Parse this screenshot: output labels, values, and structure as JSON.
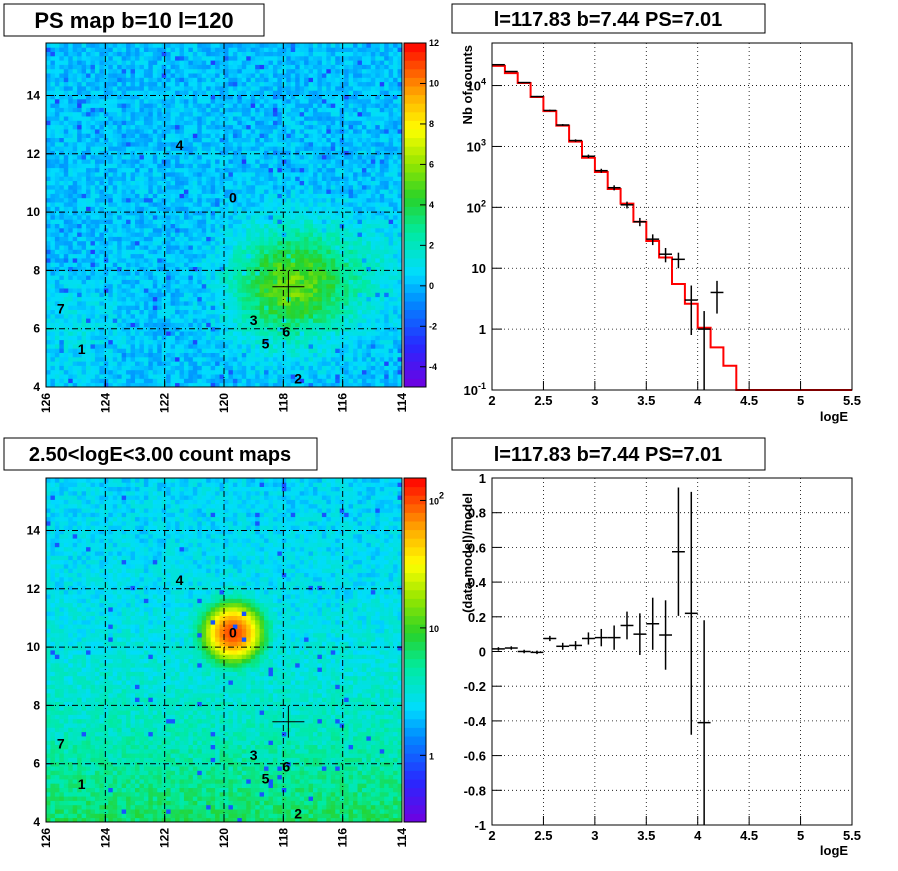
{
  "panels": {
    "tl_title": "PS map b=10 l=120",
    "tr_title": "l=117.83 b=7.44 PS=7.01",
    "bl_title": "2.50<logE<3.00 count maps",
    "br_title": "l=117.83 b=7.44 PS=7.01"
  },
  "source_labels": [
    "0",
    "1",
    "2",
    "3",
    "4",
    "5",
    "6",
    "7"
  ],
  "chart_data": [
    {
      "id": "ps-map",
      "type": "heatmap",
      "title": "PS map b=10 l=120",
      "xlim": [
        126,
        114
      ],
      "ylim": [
        4,
        15.8
      ],
      "x_ticks": [
        "126",
        "124",
        "122",
        "120",
        "118",
        "116",
        "114"
      ],
      "y_ticks": [
        "4",
        "6",
        "8",
        "10",
        "12",
        "14"
      ],
      "grid": true,
      "colorbar": {
        "min": -5,
        "max": 12,
        "ticks": [
          "12",
          "10",
          "8",
          "6",
          "4",
          "2",
          "0",
          "-2",
          "-4"
        ]
      },
      "marker": {
        "l": 117.83,
        "b": 7.44
      },
      "peak": {
        "l": 117.8,
        "b": 7.5,
        "value": 5
      },
      "sources": [
        {
          "label": "0",
          "l": 119.7,
          "b": 10.5
        },
        {
          "label": "1",
          "l": 124.8,
          "b": 5.3
        },
        {
          "label": "2",
          "l": 117.5,
          "b": 4.3
        },
        {
          "label": "3",
          "l": 119.0,
          "b": 6.3
        },
        {
          "label": "4",
          "l": 121.5,
          "b": 12.3
        },
        {
          "label": "5",
          "l": 118.6,
          "b": 5.5
        },
        {
          "label": "6",
          "l": 117.9,
          "b": 5.9
        },
        {
          "label": "7",
          "l": 125.5,
          "b": 6.7
        }
      ]
    },
    {
      "id": "spectrum",
      "type": "line",
      "title": "l=117.83 b=7.44 PS=7.01",
      "xlabel": "logE",
      "ylabel": "Nb of counts",
      "xlim": [
        2,
        5.5
      ],
      "ylim": [
        0.1,
        50000
      ],
      "y_scale": "log",
      "x_ticks": [
        "2",
        "2.5",
        "3",
        "3.5",
        "4",
        "4.5",
        "5",
        "5.5"
      ],
      "y_ticks": [
        {
          "value": 0.1,
          "label": "10",
          "sup": "-1"
        },
        {
          "value": 1,
          "label": "1",
          "sup": ""
        },
        {
          "value": 10,
          "label": "10",
          "sup": ""
        },
        {
          "value": 100,
          "label": "10",
          "sup": "2"
        },
        {
          "value": 1000,
          "label": "10",
          "sup": "3"
        },
        {
          "value": 10000,
          "label": "10",
          "sup": "4"
        }
      ],
      "grid": true,
      "model": {
        "edges": [
          2.0,
          2.125,
          2.25,
          2.375,
          2.5,
          2.625,
          2.75,
          2.875,
          3.0,
          3.125,
          3.25,
          3.375,
          3.5,
          3.625,
          3.75,
          3.875,
          4.0,
          4.125,
          4.25,
          4.375,
          4.5,
          4.625,
          4.75,
          4.875,
          5.0,
          5.125,
          5.25,
          5.375,
          5.5
        ],
        "values": [
          21000,
          16000,
          11000,
          6500,
          3800,
          2200,
          1200,
          650,
          380,
          200,
          115,
          58,
          28,
          15,
          5.5,
          2.6,
          1.05,
          0.5,
          0.25,
          0.1,
          0.1,
          0.1,
          0.1,
          0.1,
          0.1,
          0.1,
          0.1,
          0.1
        ]
      },
      "data": [
        {
          "x": 2.0625,
          "y": 22000,
          "err": 300
        },
        {
          "x": 2.1875,
          "y": 17000,
          "err": 250
        },
        {
          "x": 2.3125,
          "y": 11200,
          "err": 200
        },
        {
          "x": 2.4375,
          "y": 6600,
          "err": 150
        },
        {
          "x": 2.5625,
          "y": 3900,
          "err": 110
        },
        {
          "x": 2.6875,
          "y": 2250,
          "err": 80
        },
        {
          "x": 2.8125,
          "y": 1250,
          "err": 60
        },
        {
          "x": 2.9375,
          "y": 690,
          "err": 45
        },
        {
          "x": 3.0625,
          "y": 400,
          "err": 30
        },
        {
          "x": 3.1875,
          "y": 210,
          "err": 20
        },
        {
          "x": 3.3125,
          "y": 110,
          "err": 14
        },
        {
          "x": 3.4375,
          "y": 58,
          "err": 9
        },
        {
          "x": 3.5625,
          "y": 30,
          "err": 6
        },
        {
          "x": 3.6875,
          "y": 17,
          "err": 4.5
        },
        {
          "x": 3.8125,
          "y": 14,
          "err": 4
        },
        {
          "x": 3.9375,
          "y": 3,
          "err": 2.2
        },
        {
          "x": 4.0625,
          "y": 1,
          "err": 0.98
        },
        {
          "x": 4.1875,
          "y": 4,
          "err": 2.2
        }
      ]
    },
    {
      "id": "count-map",
      "type": "heatmap",
      "title": "2.50<logE<3.00 count maps",
      "xlim": [
        126,
        114
      ],
      "ylim": [
        4,
        15.8
      ],
      "x_ticks": [
        "126",
        "124",
        "122",
        "120",
        "118",
        "116",
        "114"
      ],
      "y_ticks": [
        "4",
        "6",
        "8",
        "10",
        "12",
        "14"
      ],
      "grid": true,
      "colorbar": {
        "scale": "log",
        "min": 0.3,
        "max": 150,
        "ticks": [
          {
            "value": 100,
            "label": "10",
            "sup": "2"
          },
          {
            "value": 10,
            "label": "10",
            "sup": ""
          },
          {
            "value": 1,
            "label": "1",
            "sup": ""
          }
        ]
      },
      "marker": {
        "l": 117.83,
        "b": 7.44
      },
      "peak": {
        "l": 119.7,
        "b": 10.5,
        "value": 100
      }
    },
    {
      "id": "residuals",
      "type": "scatter",
      "title": "l=117.83 b=7.44 PS=7.01",
      "xlabel": "logE",
      "ylabel": "(data-model)/model",
      "xlim": [
        2,
        5.5
      ],
      "ylim": [
        -1,
        1
      ],
      "x_ticks": [
        "2",
        "2.5",
        "3",
        "3.5",
        "4",
        "4.5",
        "5",
        "5.5"
      ],
      "y_ticks": [
        "1",
        "0.8",
        "0.6",
        "0.4",
        "0.2",
        "0",
        "-0.2",
        "-0.4",
        "-0.6",
        "-0.8",
        "-1"
      ],
      "grid": true,
      "points": [
        {
          "x": 2.0625,
          "y": 0.015,
          "err": 0.01
        },
        {
          "x": 2.1875,
          "y": 0.02,
          "err": 0.01
        },
        {
          "x": 2.3125,
          "y": 0.0,
          "err": 0.01
        },
        {
          "x": 2.4375,
          "y": -0.005,
          "err": 0.01
        },
        {
          "x": 2.5625,
          "y": 0.075,
          "err": 0.015
        },
        {
          "x": 2.6875,
          "y": 0.03,
          "err": 0.02
        },
        {
          "x": 2.8125,
          "y": 0.035,
          "err": 0.025
        },
        {
          "x": 2.9375,
          "y": 0.075,
          "err": 0.035
        },
        {
          "x": 3.0625,
          "y": 0.08,
          "err": 0.05
        },
        {
          "x": 3.1875,
          "y": 0.08,
          "err": 0.07
        },
        {
          "x": 3.3125,
          "y": 0.15,
          "err": 0.08
        },
        {
          "x": 3.4375,
          "y": 0.1,
          "err": 0.12
        },
        {
          "x": 3.5625,
          "y": 0.16,
          "err": 0.15
        },
        {
          "x": 3.6875,
          "y": 0.095,
          "err": 0.2
        },
        {
          "x": 3.8125,
          "y": 0.575,
          "err": 0.37
        },
        {
          "x": 3.9375,
          "y": 0.22,
          "err": 0.7
        },
        {
          "x": 4.0625,
          "y": -0.41,
          "err": 0.59
        }
      ]
    }
  ]
}
